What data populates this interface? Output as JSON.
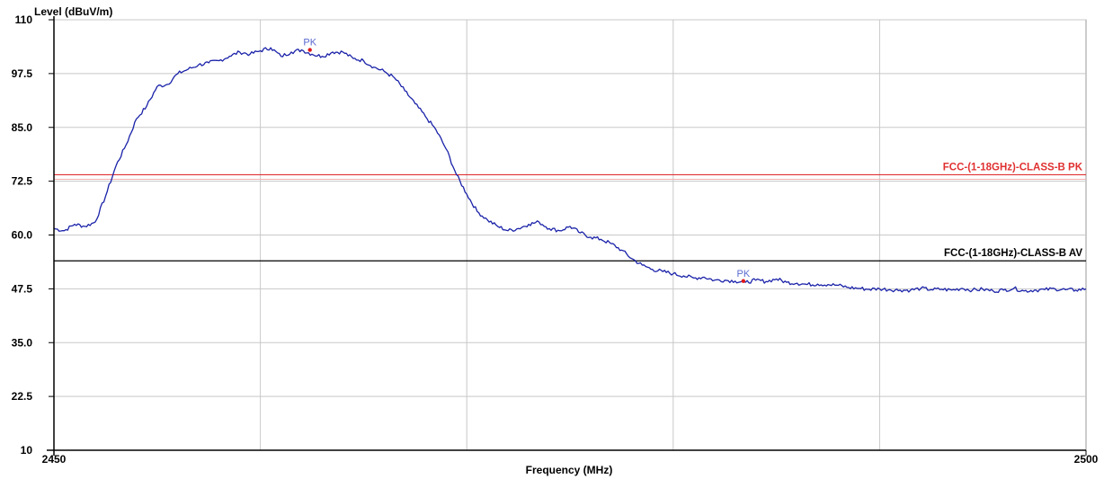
{
  "chart_data": {
    "type": "line",
    "ylabel": "Level (dBuV/m)",
    "xlabel": "Frequency (MHz)",
    "xlim": [
      2450,
      2500
    ],
    "ylim": [
      10,
      110
    ],
    "y_ticks": [
      "110",
      "97.5",
      "85.0",
      "72.5",
      "60.0",
      "47.5",
      "35.0",
      "22.5",
      "10"
    ],
    "x_ticks": [
      "2450",
      "2500"
    ],
    "x_tick_values": [
      2450,
      2500
    ],
    "grid": true,
    "limit_lines": [
      {
        "label": "FCC-(1-18GHz)-CLASS-B PK",
        "value": 74.0,
        "color": "#e03030"
      },
      {
        "label": "FCC-(1-18GHz)-CLASS-B AV",
        "value": 54.0,
        "color": "#000000"
      }
    ],
    "markers": [
      {
        "label": "PK",
        "x": 2462.4,
        "y": 103.0
      },
      {
        "label": "PK",
        "x": 2483.4,
        "y": 49.3
      }
    ],
    "series": [
      {
        "color": "#1a22a8",
        "x": [
          2450,
          2450.5,
          2451,
          2451.5,
          2452,
          2452.5,
          2453,
          2453.5,
          2454,
          2454.5,
          2455,
          2455.5,
          2456,
          2456.5,
          2457,
          2457.5,
          2458,
          2458.5,
          2459,
          2459.5,
          2460,
          2460.5,
          2461,
          2461.5,
          2462,
          2462.5,
          2463,
          2463.5,
          2464,
          2464.5,
          2465,
          2465.5,
          2466,
          2466.5,
          2467,
          2467.5,
          2468,
          2468.5,
          2469,
          2469.5,
          2470,
          2470.5,
          2471,
          2471.5,
          2472,
          2472.5,
          2473,
          2473.5,
          2474,
          2474.5,
          2475,
          2475.5,
          2476,
          2476.5,
          2477,
          2477.5,
          2478,
          2478.5,
          2479,
          2479.5,
          2480,
          2480.5,
          2481,
          2481.5,
          2482,
          2482.5,
          2483,
          2483.5,
          2484,
          2484.5,
          2485,
          2485.5,
          2486,
          2486.5,
          2487,
          2487.5,
          2488,
          2488.5,
          2489,
          2489.5,
          2490,
          2490.5,
          2491,
          2491.5,
          2492,
          2492.5,
          2493,
          2493.5,
          2494,
          2494.5,
          2495,
          2495.5,
          2496,
          2496.5,
          2497,
          2497.5,
          2498,
          2498.5,
          2499,
          2499.5,
          2500
        ],
        "y": [
          61.5,
          61.0,
          62.5,
          62.0,
          63.0,
          69.0,
          76.0,
          81.0,
          87.0,
          90.0,
          94.5,
          95.0,
          97.5,
          98.5,
          99.5,
          100.0,
          100.5,
          101.5,
          102.5,
          102.0,
          102.8,
          103.5,
          101.5,
          102.5,
          103.0,
          102.0,
          101.5,
          102.5,
          102.5,
          101.0,
          100.5,
          99.0,
          98.0,
          96.5,
          93.5,
          90.5,
          87.5,
          84.5,
          80.0,
          74.0,
          69.5,
          65.5,
          63.5,
          62.0,
          61.0,
          61.5,
          62.5,
          63.0,
          61.5,
          61.0,
          62.0,
          60.5,
          59.5,
          59.0,
          58.0,
          56.5,
          54.5,
          53.0,
          52.0,
          51.5,
          51.0,
          50.5,
          50.0,
          50.2,
          49.5,
          49.5,
          49.3,
          49.0,
          49.5,
          49.2,
          49.8,
          49.0,
          48.8,
          48.5,
          48.6,
          48.5,
          48.3,
          47.8,
          47.6,
          47.4,
          47.5,
          47.3,
          47.2,
          47.2,
          47.6,
          47.3,
          47.4,
          47.2,
          47.6,
          47.2,
          47.4,
          47.0,
          47.2,
          47.6,
          47.0,
          47.2,
          47.3,
          47.5,
          47.3,
          47.2,
          47.5
        ]
      }
    ]
  }
}
